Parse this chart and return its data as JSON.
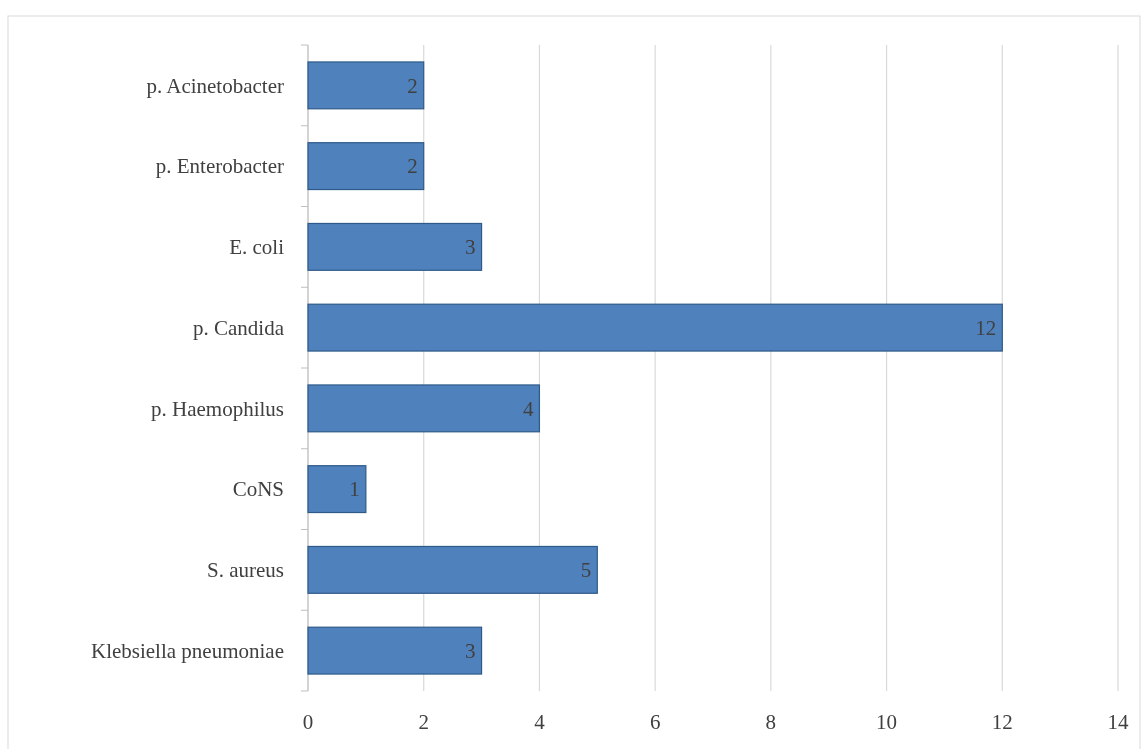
{
  "chart_data": {
    "type": "bar",
    "orientation": "horizontal",
    "categories": [
      "p. Acinetobacter",
      "p. Enterobacter",
      "E. coli",
      "p. Candida",
      "p. Haemophilus",
      "CoNS",
      "S. aureus",
      "Klebsiella pneumoniae"
    ],
    "values": [
      2,
      2,
      3,
      12,
      4,
      1,
      5,
      3
    ],
    "color": "#4f81bd",
    "xlim": [
      0,
      14
    ],
    "xticks": [
      0,
      2,
      4,
      6,
      8,
      10,
      12,
      14
    ],
    "grid": "x",
    "data_labels": true
  }
}
